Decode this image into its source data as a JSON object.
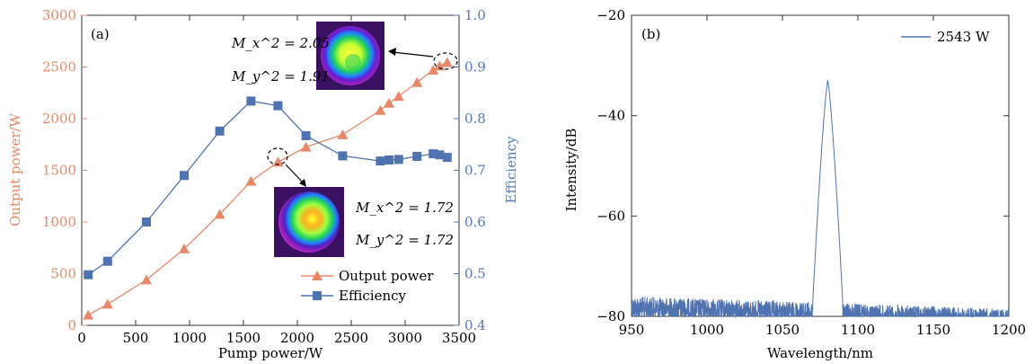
{
  "chart_data": [
    {
      "type": "line",
      "panel_label": "(a)",
      "xlabel": "Pump power/W",
      "ylabel_left": "Output power/W",
      "ylabel_right": "Efficiency",
      "xlim": [
        0,
        3500
      ],
      "ylim_left": [
        0,
        3000
      ],
      "ylim_right": [
        0.4,
        1.0
      ],
      "x_ticks": [
        0,
        500,
        1000,
        1500,
        2000,
        2500,
        3000,
        3500
      ],
      "y_left_ticks": [
        0,
        500,
        1000,
        1500,
        2000,
        2500,
        3000
      ],
      "y_right_ticks": [
        "0.4",
        "0.5",
        "0.6",
        "0.7",
        "0.8",
        "0.9",
        "1.0"
      ],
      "legend_position": "bottom-right",
      "colors": {
        "output": "#e8886a",
        "efficiency": "#4f72b0",
        "left_axis": "#e8886a",
        "right_axis": "#5577bb"
      },
      "series": [
        {
          "name": "Output power",
          "axis": "left",
          "marker": "triangle",
          "x": [
            60,
            240,
            600,
            950,
            1280,
            1570,
            1820,
            2080,
            2420,
            2770,
            2850,
            2940,
            3110,
            3260,
            3320,
            3390
          ],
          "values": [
            100,
            205,
            440,
            740,
            1075,
            1395,
            1580,
            1725,
            1845,
            2080,
            2150,
            2215,
            2350,
            2470,
            2510,
            2543
          ]
        },
        {
          "name": "Efficiency",
          "axis": "right",
          "marker": "square",
          "x": [
            60,
            240,
            600,
            950,
            1280,
            1570,
            1820,
            2080,
            2420,
            2770,
            2850,
            2940,
            3110,
            3260,
            3320,
            3390
          ],
          "values": [
            0.498,
            0.524,
            0.6,
            0.69,
            0.776,
            0.834,
            0.825,
            0.767,
            0.728,
            0.718,
            0.72,
            0.721,
            0.727,
            0.732,
            0.73,
            0.725
          ]
        }
      ],
      "annotations": [
        {
          "target": "high-power",
          "mx": "M_x^2 = 2.05",
          "my": "M_y^2 = 1.91"
        },
        {
          "target": "mid-power",
          "mx": "M_x^2 = 1.72",
          "my": "M_y^2 = 1.72"
        }
      ]
    },
    {
      "type": "line",
      "panel_label": "(b)",
      "xlabel": "Wavelength/nm",
      "ylabel": "Intensity/dB",
      "xlim": [
        950,
        1200
      ],
      "ylim": [
        -80,
        -20
      ],
      "x_ticks": [
        950,
        1000,
        1050,
        1100,
        1150,
        1200
      ],
      "y_ticks": [
        -80,
        -60,
        -40,
        -20
      ],
      "y_tick_labels": [
        "−80",
        "−60",
        "−40",
        "−20"
      ],
      "legend_position": "top-right",
      "colors": {
        "spectrum": "#4f72b0"
      },
      "series": [
        {
          "name": "2543 W",
          "peak_wavelength": 1080,
          "peak_intensity": -33,
          "noise_floor_start": -76,
          "noise_floor_end": -78.5,
          "noise_floor_edge": 1070
        }
      ]
    }
  ]
}
